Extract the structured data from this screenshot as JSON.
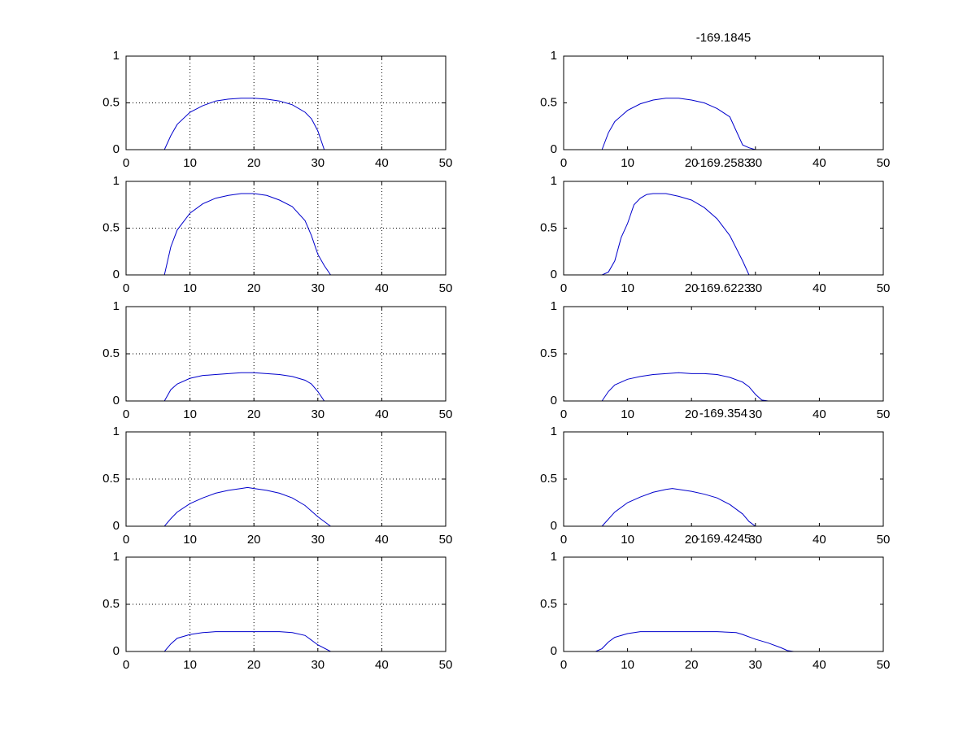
{
  "chart_data": [
    {
      "type": "line",
      "x": [
        0,
        6,
        7,
        8,
        10,
        12,
        14,
        16,
        18,
        20,
        22,
        24,
        26,
        28,
        29,
        30,
        31,
        50
      ],
      "values": [
        0,
        0,
        0.15,
        0.27,
        0.4,
        0.47,
        0.52,
        0.54,
        0.55,
        0.55,
        0.54,
        0.52,
        0.48,
        0.4,
        0.33,
        0.2,
        0,
        0
      ],
      "color": "#0000cc",
      "xlim": [
        0,
        50
      ],
      "ylim": [
        0,
        1
      ],
      "xticks": [
        0,
        10,
        20,
        30,
        40,
        50
      ],
      "yticks": [
        0,
        0.5,
        1
      ],
      "grid": true
    },
    {
      "type": "line",
      "title": "-169.1845",
      "x": [
        6,
        7,
        8,
        10,
        12,
        14,
        16,
        18,
        20,
        22,
        24,
        26,
        27,
        28,
        29,
        30
      ],
      "values": [
        0,
        0.18,
        0.3,
        0.42,
        0.49,
        0.53,
        0.55,
        0.55,
        0.53,
        0.5,
        0.44,
        0.35,
        0.2,
        0.05,
        0.02,
        0
      ],
      "color": "#0000cc",
      "xlim": [
        0,
        50
      ],
      "ylim": [
        0,
        1
      ],
      "xticks": [
        0,
        10,
        20,
        30,
        40,
        50
      ],
      "yticks": [
        0,
        0.5,
        1
      ],
      "grid": false
    },
    {
      "type": "line",
      "x": [
        0,
        6,
        7,
        8,
        10,
        12,
        14,
        16,
        18,
        20,
        22,
        24,
        26,
        28,
        29,
        30,
        31,
        32,
        50
      ],
      "values": [
        0,
        0,
        0.3,
        0.48,
        0.66,
        0.76,
        0.82,
        0.85,
        0.87,
        0.87,
        0.85,
        0.8,
        0.73,
        0.58,
        0.42,
        0.22,
        0.1,
        0,
        0
      ],
      "color": "#0000cc",
      "xlim": [
        0,
        50
      ],
      "ylim": [
        0,
        1
      ],
      "xticks": [
        0,
        10,
        20,
        30,
        40,
        50
      ],
      "yticks": [
        0,
        0.5,
        1
      ],
      "grid": true
    },
    {
      "type": "line",
      "title": "-169.2583",
      "x": [
        6,
        7,
        8,
        9,
        10,
        11,
        12,
        13,
        14,
        16,
        18,
        20,
        22,
        24,
        26,
        28,
        29
      ],
      "values": [
        0,
        0.03,
        0.15,
        0.4,
        0.55,
        0.75,
        0.82,
        0.86,
        0.87,
        0.87,
        0.84,
        0.8,
        0.72,
        0.6,
        0.42,
        0.15,
        0
      ],
      "color": "#0000cc",
      "xlim": [
        0,
        50
      ],
      "ylim": [
        0,
        1
      ],
      "xticks": [
        0,
        10,
        20,
        30,
        40,
        50
      ],
      "yticks": [
        0,
        0.5,
        1
      ],
      "grid": false
    },
    {
      "type": "line",
      "x": [
        0,
        6,
        7,
        8,
        10,
        12,
        14,
        16,
        18,
        20,
        22,
        24,
        26,
        28,
        29,
        30,
        31,
        50
      ],
      "values": [
        0,
        0,
        0.12,
        0.18,
        0.24,
        0.27,
        0.28,
        0.29,
        0.3,
        0.3,
        0.29,
        0.28,
        0.26,
        0.22,
        0.18,
        0.1,
        0,
        0
      ],
      "color": "#0000cc",
      "xlim": [
        0,
        50
      ],
      "ylim": [
        0,
        1
      ],
      "xticks": [
        0,
        10,
        20,
        30,
        40,
        50
      ],
      "yticks": [
        0,
        0.5,
        1
      ],
      "grid": true
    },
    {
      "type": "line",
      "title": "-169.6223",
      "x": [
        6,
        7,
        8,
        10,
        12,
        14,
        16,
        18,
        20,
        22,
        24,
        26,
        28,
        29,
        30,
        31,
        32
      ],
      "values": [
        0,
        0.1,
        0.17,
        0.23,
        0.26,
        0.28,
        0.29,
        0.3,
        0.29,
        0.29,
        0.28,
        0.25,
        0.2,
        0.15,
        0.07,
        0.01,
        0
      ],
      "color": "#0000cc",
      "xlim": [
        0,
        50
      ],
      "ylim": [
        0,
        1
      ],
      "xticks": [
        0,
        10,
        20,
        30,
        40,
        50
      ],
      "yticks": [
        0,
        0.5,
        1
      ],
      "grid": false
    },
    {
      "type": "line",
      "x": [
        0,
        6,
        7,
        8,
        10,
        12,
        14,
        16,
        18,
        19,
        20,
        22,
        24,
        26,
        28,
        30,
        32,
        50
      ],
      "values": [
        0,
        0,
        0.08,
        0.15,
        0.24,
        0.3,
        0.35,
        0.38,
        0.4,
        0.41,
        0.4,
        0.38,
        0.35,
        0.3,
        0.22,
        0.1,
        0,
        0
      ],
      "color": "#0000cc",
      "xlim": [
        0,
        50
      ],
      "ylim": [
        0,
        1
      ],
      "xticks": [
        0,
        10,
        20,
        30,
        40,
        50
      ],
      "yticks": [
        0,
        0.5,
        1
      ],
      "grid": true
    },
    {
      "type": "line",
      "title": "-169.354",
      "x": [
        6,
        8,
        10,
        12,
        14,
        16,
        17,
        18,
        20,
        22,
        24,
        26,
        28,
        29,
        30
      ],
      "values": [
        0,
        0.15,
        0.25,
        0.31,
        0.36,
        0.39,
        0.4,
        0.39,
        0.37,
        0.34,
        0.3,
        0.23,
        0.13,
        0.05,
        0
      ],
      "color": "#0000cc",
      "xlim": [
        0,
        50
      ],
      "ylim": [
        0,
        1
      ],
      "xticks": [
        0,
        10,
        20,
        30,
        40,
        50
      ],
      "yticks": [
        0,
        0.5,
        1
      ],
      "grid": false
    },
    {
      "type": "line",
      "x": [
        0,
        6,
        7,
        8,
        10,
        12,
        14,
        20,
        24,
        26,
        28,
        30,
        32,
        50
      ],
      "values": [
        0,
        0,
        0.08,
        0.14,
        0.18,
        0.2,
        0.21,
        0.21,
        0.21,
        0.2,
        0.17,
        0.07,
        0,
        0
      ],
      "color": "#0000cc",
      "xlim": [
        0,
        50
      ],
      "ylim": [
        0,
        1
      ],
      "xticks": [
        0,
        10,
        20,
        30,
        40,
        50
      ],
      "yticks": [
        0,
        0.5,
        1
      ],
      "grid": true
    },
    {
      "type": "line",
      "title": "-169.4245",
      "x": [
        5,
        6,
        7,
        8,
        10,
        12,
        20,
        24,
        27,
        28,
        30,
        32,
        34,
        35,
        36
      ],
      "values": [
        0,
        0.03,
        0.1,
        0.15,
        0.19,
        0.21,
        0.21,
        0.21,
        0.2,
        0.18,
        0.13,
        0.09,
        0.04,
        0.01,
        0
      ],
      "color": "#0000cc",
      "xlim": [
        0,
        50
      ],
      "ylim": [
        0,
        1
      ],
      "xticks": [
        0,
        10,
        20,
        30,
        40,
        50
      ],
      "yticks": [
        0,
        0.5,
        1
      ],
      "grid": false
    }
  ]
}
